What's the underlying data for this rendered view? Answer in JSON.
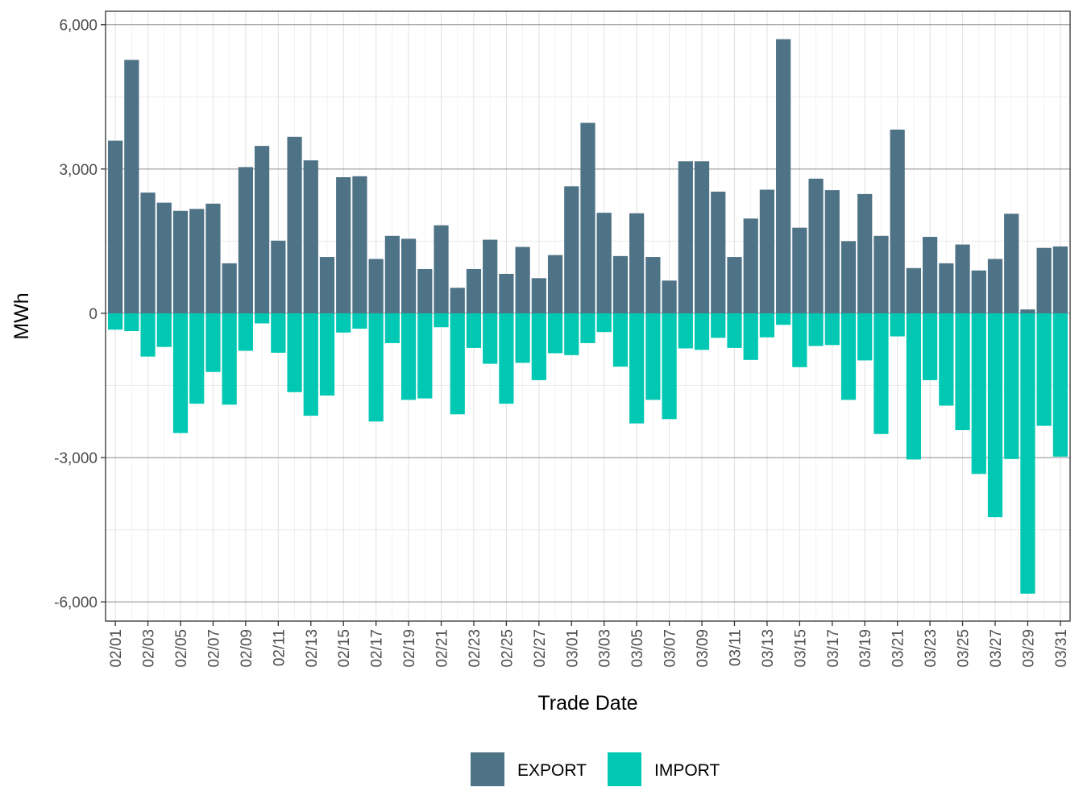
{
  "chart_data": {
    "type": "bar",
    "stacked": true,
    "title": "",
    "xlabel": "Trade Date",
    "ylabel": "MWh",
    "ylim": [
      -6400,
      6280
    ],
    "yticks": [
      -6000,
      -3000,
      0,
      3000,
      6000
    ],
    "ytick_labels": [
      "-6,000",
      "-3,000",
      "0",
      "3,000",
      "6,000"
    ],
    "grid": true,
    "legend_position": "bottom",
    "categories": [
      "02/01",
      "02/02",
      "02/03",
      "02/04",
      "02/05",
      "02/06",
      "02/07",
      "02/08",
      "02/09",
      "02/10",
      "02/11",
      "02/12",
      "02/13",
      "02/14",
      "02/15",
      "02/16",
      "02/17",
      "02/18",
      "02/19",
      "02/20",
      "02/21",
      "02/22",
      "02/23",
      "02/24",
      "02/25",
      "02/26",
      "02/27",
      "02/28",
      "03/01",
      "03/02",
      "03/03",
      "03/04",
      "03/05",
      "03/06",
      "03/07",
      "03/08",
      "03/09",
      "03/10",
      "03/11",
      "03/12",
      "03/13",
      "03/14",
      "03/15",
      "03/16",
      "03/17",
      "03/18",
      "03/19",
      "03/20",
      "03/21",
      "03/22",
      "03/23",
      "03/24",
      "03/25",
      "03/26",
      "03/27",
      "03/28",
      "03/29",
      "03/30",
      "03/31"
    ],
    "xtick_labels": [
      "02/01",
      "02/03",
      "02/05",
      "02/07",
      "02/09",
      "02/11",
      "02/13",
      "02/15",
      "02/17",
      "02/19",
      "02/21",
      "02/23",
      "02/25",
      "02/27",
      "03/01",
      "03/03",
      "03/05",
      "03/07",
      "03/09",
      "03/11",
      "03/13",
      "03/15",
      "03/17",
      "03/19",
      "03/21",
      "03/23",
      "03/25",
      "03/27",
      "03/29",
      "03/31"
    ],
    "series": [
      {
        "name": "EXPORT",
        "color": "#4e7286",
        "values": [
          3590,
          5270,
          2510,
          2300,
          2130,
          2170,
          2280,
          1040,
          3040,
          3480,
          1510,
          3670,
          3180,
          1170,
          2830,
          2850,
          1130,
          1610,
          1550,
          920,
          1830,
          530,
          920,
          1530,
          820,
          1380,
          730,
          1210,
          2640,
          3960,
          2090,
          1190,
          2080,
          1170,
          680,
          3160,
          3160,
          2530,
          1170,
          1970,
          2570,
          5700,
          1780,
          2800,
          2560,
          1500,
          2480,
          1610,
          3820,
          940,
          1590,
          1040,
          1430,
          890,
          1130,
          2070,
          80,
          1360,
          1390
        ]
      },
      {
        "name": "IMPORT",
        "color": "#00c8b3",
        "values": [
          -340,
          -370,
          -900,
          -700,
          -2490,
          -1880,
          -1220,
          -1900,
          -780,
          -210,
          -820,
          -1640,
          -2130,
          -1710,
          -400,
          -320,
          -2250,
          -620,
          -1800,
          -1770,
          -290,
          -2100,
          -720,
          -1050,
          -1880,
          -1030,
          -1390,
          -830,
          -870,
          -620,
          -390,
          -1110,
          -2290,
          -1800,
          -2200,
          -730,
          -760,
          -510,
          -720,
          -970,
          -500,
          -240,
          -1120,
          -680,
          -660,
          -1800,
          -980,
          -2510,
          -480,
          -3040,
          -1390,
          -1920,
          -2430,
          -3340,
          -4240,
          -3030,
          -5830,
          -2340,
          -2980
        ]
      }
    ]
  }
}
